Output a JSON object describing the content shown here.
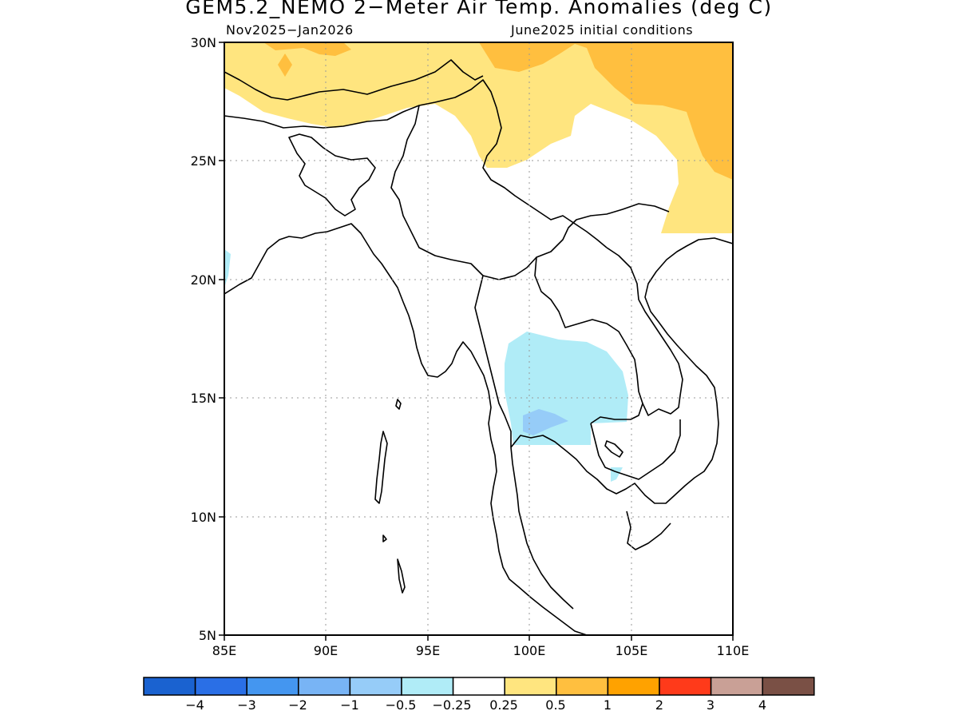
{
  "title": "GEM5.2_NEMO 2−Meter Air Temp. Anomalies (deg C)",
  "subtitle_left": "Nov2025−Jan2026",
  "subtitle_right": "June2025 initial conditions",
  "axes": {
    "lon_ticks": [
      "85E",
      "90E",
      "95E",
      "100E",
      "105E",
      "110E"
    ],
    "lat_ticks": [
      "30N",
      "25N",
      "20N",
      "15N",
      "10N",
      "5N"
    ],
    "lon_range": [
      85,
      110
    ],
    "lat_range": [
      5,
      30
    ],
    "grid": "dotted"
  },
  "legend": {
    "colors": [
      "#1a62d0",
      "#2a6fe6",
      "#4496f0",
      "#78b4f5",
      "#96ccf8",
      "#b0ecf7",
      "#ffffff",
      "#ffe57f",
      "#ffbf3f",
      "#ffa200",
      "#ff3a1a",
      "#c9a096",
      "#7a5045"
    ],
    "labels": [
      "−4",
      "−3",
      "−2",
      "−1",
      "−0.5",
      "−0.25",
      "0.25",
      "0.5",
      "1",
      "2",
      "3",
      "4"
    ]
  },
  "fill_colors": {
    "warm_light": "#ffe57f",
    "warm_mid": "#ffbf3f",
    "warm_strong": "#ffa200",
    "cool_light": "#b0ecf7",
    "cool_mid": "#96ccf8"
  }
}
